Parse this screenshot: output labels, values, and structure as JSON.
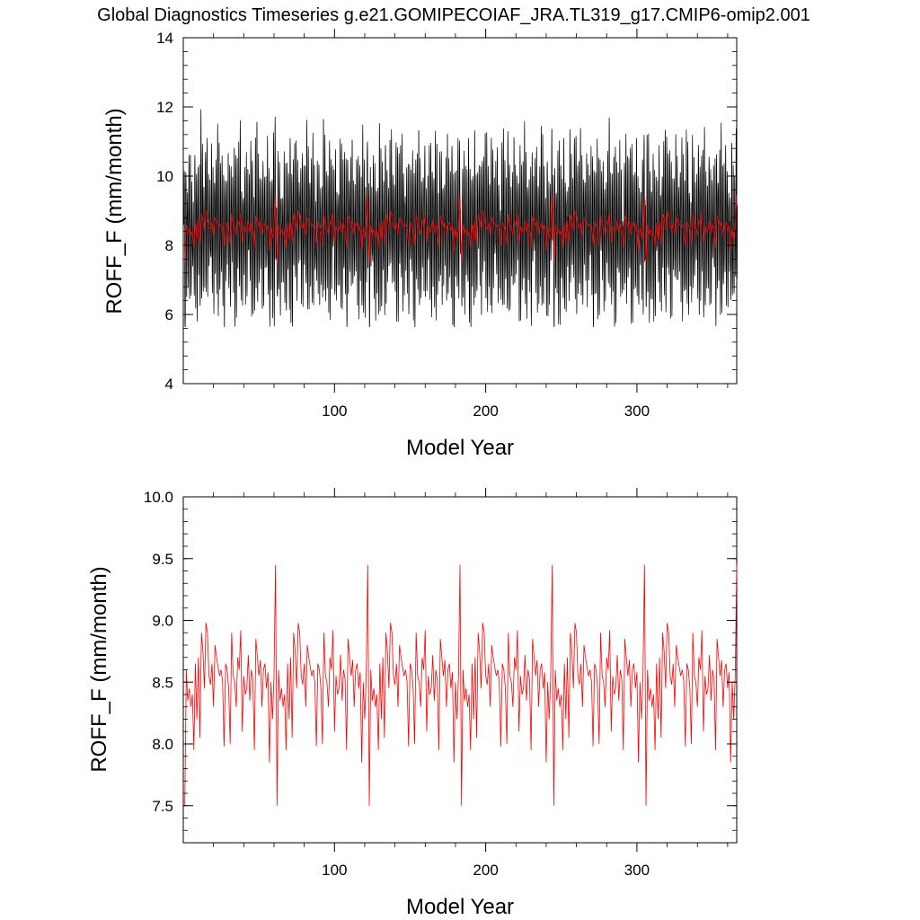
{
  "title": "Global Diagnostics Timeseries g.e21.GOMIPECOIAF_JRA.TL319_g17.CMIP6-omip2.001",
  "colors": {
    "monthly": "#000000",
    "annual": "#ff0000",
    "background": "#ffffff",
    "axes": "#000000"
  },
  "chart_data": [
    {
      "type": "line",
      "title": "",
      "xlabel": "Model Year",
      "ylabel": "ROFF_F (mm/month)",
      "xlim": [
        0,
        366
      ],
      "ylim": [
        4,
        14
      ],
      "xticks": [
        100,
        200,
        300
      ],
      "xtick_labels": [
        "100",
        "200",
        "300"
      ],
      "yticks": [
        4,
        6,
        8,
        10,
        12,
        14
      ],
      "ytick_labels": [
        "4",
        "6",
        "8",
        "10",
        "12",
        "14"
      ],
      "grid": false,
      "legend": "none",
      "series": [
        {
          "kind": "monthly",
          "color": "#000000",
          "cycle_years": 61,
          "count_years": 366,
          "seasonal_range": [
            5.6,
            12.1
          ],
          "note_free": true,
          "x": [],
          "values": []
        },
        {
          "kind": "annual",
          "color": "#ff0000",
          "ref": "annual_mean",
          "x": [],
          "values": []
        }
      ]
    },
    {
      "type": "line",
      "title": "",
      "xlabel": "Model Year",
      "ylabel": "ROFF_F (mm/month)",
      "xlim": [
        0,
        366
      ],
      "ylim": [
        7.2,
        10.0
      ],
      "xticks": [
        100,
        200,
        300
      ],
      "xtick_labels": [
        "100",
        "200",
        "300"
      ],
      "yticks": [
        7.5,
        8.0,
        8.5,
        9.0,
        9.5,
        10.0
      ],
      "ytick_labels": [
        "7.5",
        "8.0",
        "8.5",
        "9.0",
        "9.5",
        "10.0"
      ],
      "grid": false,
      "legend": "none",
      "series": [
        {
          "kind": "annual",
          "color": "#ff0000",
          "ref": "annual_mean",
          "x": [],
          "values": []
        }
      ]
    }
  ],
  "annual_mean": {
    "cycle_years": 61,
    "first_year": 1,
    "last_year": 366,
    "cycle_values": [
      7.5,
      8.6,
      8.35,
      8.45,
      8.3,
      8.4,
      7.95,
      8.65,
      8.2,
      8.7,
      8.05,
      8.9,
      8.75,
      8.45,
      8.98,
      8.9,
      8.55,
      8.48,
      8.65,
      8.3,
      8.8,
      8.7,
      8.62,
      8.55,
      8.6,
      8.5,
      7.98,
      8.65,
      8.6,
      8.45,
      8.0,
      8.9,
      8.55,
      8.5,
      8.3,
      8.7,
      8.6,
      8.92,
      8.1,
      8.55,
      8.4,
      8.45,
      8.72,
      8.35,
      8.6,
      8.52,
      7.95,
      8.85,
      8.7,
      8.55,
      8.68,
      8.3,
      8.6,
      8.65,
      8.45,
      8.58,
      7.85,
      8.5,
      8.2,
      8.55,
      9.45
    ]
  }
}
